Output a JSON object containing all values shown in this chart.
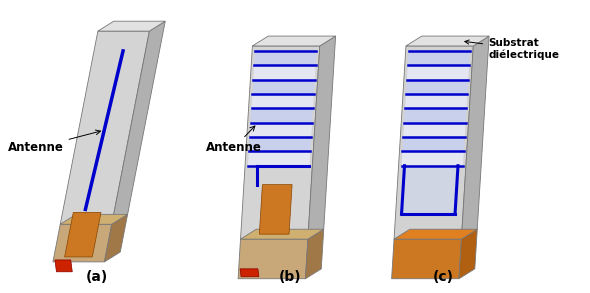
{
  "title": "",
  "labels": [
    "(a)",
    "(b)",
    "(c)"
  ],
  "bg_color": "#ffffff",
  "substrate_front_color": "#d4d4d4",
  "substrate_side_color": "#b0b0b0",
  "substrate_top_color": "#e2e2e2",
  "ground_front_color": "#c8a070",
  "ground_side_color": "#a07848",
  "ground_top_color": "#d4aa60",
  "feed_orange_color": "#cc7722",
  "feed_red_color": "#cc2200",
  "antenna_color": "#0000cc",
  "meander_fill_color": "#c8d0f0",
  "label_fontsize": 10
}
